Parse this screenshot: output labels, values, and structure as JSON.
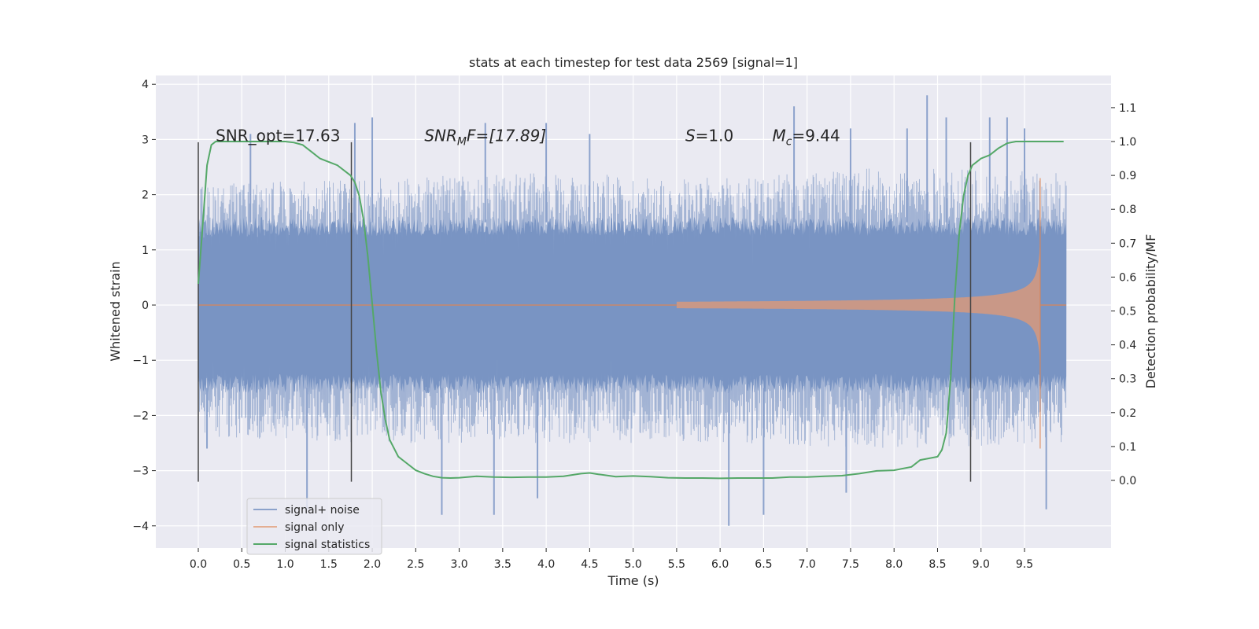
{
  "chart_data": {
    "type": "line",
    "title": "stats at each timestep for test data 2569 [signal=1]",
    "xlabel": "Time (s)",
    "ylabel": "Whitened strain",
    "y2label": "Detection probability/MF",
    "xlim": [
      -0.5,
      10.5
    ],
    "ylim": [
      -4.4,
      4.2
    ],
    "y2lim": [
      -0.2,
      1.2
    ],
    "x_ticks": [
      "0.0",
      "0.5",
      "1.0",
      "1.5",
      "2.0",
      "2.5",
      "3.0",
      "3.5",
      "4.0",
      "4.5",
      "5.0",
      "5.5",
      "6.0",
      "6.5",
      "7.0",
      "7.5",
      "8.0",
      "8.5",
      "9.0",
      "9.5"
    ],
    "x_tick_values": [
      0.0,
      0.5,
      1.0,
      1.5,
      2.0,
      2.5,
      3.0,
      3.5,
      4.0,
      4.5,
      5.0,
      5.5,
      6.0,
      6.5,
      7.0,
      7.5,
      8.0,
      8.5,
      9.0,
      9.5
    ],
    "y_ticks": [
      "4",
      "3",
      "2",
      "1",
      "0",
      "−1",
      "−2",
      "−3",
      "−4"
    ],
    "y_tick_values": [
      4,
      3,
      2,
      1,
      0,
      -1,
      -2,
      -3,
      -4
    ],
    "y2_ticks": [
      "1.1",
      "1.0",
      "0.9",
      "0.8",
      "0.7",
      "0.6",
      "0.5",
      "0.4",
      "0.3",
      "0.2",
      "0.1",
      "0.0"
    ],
    "y2_tick_values": [
      1.1,
      1.0,
      0.9,
      0.8,
      0.7,
      0.6,
      0.5,
      0.4,
      0.3,
      0.2,
      0.1,
      0.0
    ],
    "grid": true,
    "legend_position": "bottom-left",
    "annotations": [
      {
        "name": "snr-opt",
        "text": "SNR_opt=17.63",
        "x": 0.2,
        "y": 3.0
      },
      {
        "name": "snr-mf",
        "text": "SNR",
        "sub": "M",
        "rest": "F=[17.89]",
        "x": 2.6,
        "y": 3.0
      },
      {
        "name": "s-value",
        "text": "S",
        "rest": "=1.0",
        "x": 5.6,
        "y": 3.0
      },
      {
        "name": "mc-value",
        "text": "M",
        "sub": "c",
        "rest": "=9.44",
        "x": 6.6,
        "y": 3.0
      }
    ],
    "vlines": [
      0.0,
      1.76,
      8.88
    ],
    "vline_range": [
      -3.2,
      2.95
    ],
    "series": [
      {
        "name": "signal+ noise",
        "color": "#4c72b0",
        "x_range": [
          0.0,
          9.98
        ],
        "band": [
          [
            0.0,
            2.2,
            -2.4
          ],
          [
            2.0,
            2.3,
            -2.5
          ],
          [
            4.0,
            2.4,
            -2.5
          ],
          [
            6.0,
            2.3,
            -2.5
          ],
          [
            8.0,
            2.5,
            -2.6
          ],
          [
            9.98,
            2.4,
            -2.5
          ]
        ],
        "peaks": [
          [
            0.6,
            3.1
          ],
          [
            1.8,
            3.3
          ],
          [
            2.0,
            3.4
          ],
          [
            3.3,
            3.3
          ],
          [
            4.0,
            3.3
          ],
          [
            4.5,
            3.1
          ],
          [
            6.85,
            3.6
          ],
          [
            7.5,
            3.2
          ],
          [
            8.15,
            3.2
          ],
          [
            8.38,
            3.8
          ],
          [
            8.6,
            3.4
          ],
          [
            9.1,
            3.4
          ],
          [
            9.3,
            3.4
          ],
          [
            9.5,
            3.2
          ]
        ],
        "troughs": [
          [
            0.1,
            -2.6
          ],
          [
            1.25,
            -3.7
          ],
          [
            2.8,
            -3.8
          ],
          [
            3.4,
            -3.8
          ],
          [
            3.9,
            -3.5
          ],
          [
            6.1,
            -4.0
          ],
          [
            6.5,
            -3.8
          ],
          [
            7.45,
            -3.4
          ],
          [
            9.75,
            -3.7
          ]
        ]
      },
      {
        "name": "signal only",
        "color": "#dd8452",
        "chirp_start": 5.5,
        "chirp_end": 9.68,
        "chirp_peak_amplitude": 2.3
      },
      {
        "name": "signal statistics",
        "color": "#55a868",
        "axis": "right",
        "x": [
          0.0,
          0.05,
          0.1,
          0.15,
          0.2,
          0.3,
          0.5,
          0.8,
          1.0,
          1.1,
          1.2,
          1.3,
          1.4,
          1.5,
          1.6,
          1.7,
          1.75,
          1.8,
          1.85,
          1.9,
          1.95,
          2.0,
          2.05,
          2.1,
          2.15,
          2.2,
          2.3,
          2.4,
          2.5,
          2.6,
          2.7,
          2.8,
          2.9,
          3.0,
          3.2,
          3.4,
          3.6,
          3.8,
          4.0,
          4.2,
          4.4,
          4.5,
          4.6,
          4.8,
          5.0,
          5.2,
          5.4,
          5.6,
          5.8,
          6.0,
          6.2,
          6.4,
          6.6,
          6.8,
          7.0,
          7.2,
          7.4,
          7.6,
          7.8,
          8.0,
          8.2,
          8.3,
          8.4,
          8.5,
          8.55,
          8.6,
          8.65,
          8.7,
          8.75,
          8.8,
          8.85,
          8.9,
          8.95,
          9.0,
          9.1,
          9.2,
          9.3,
          9.4,
          9.5,
          9.6,
          9.7,
          9.8,
          9.95
        ],
        "y": [
          0.58,
          0.75,
          0.93,
          0.99,
          1.0,
          1.0,
          1.0,
          1.0,
          1.0,
          0.997,
          0.99,
          0.97,
          0.95,
          0.94,
          0.93,
          0.91,
          0.9,
          0.88,
          0.84,
          0.77,
          0.66,
          0.52,
          0.38,
          0.26,
          0.18,
          0.12,
          0.07,
          0.05,
          0.03,
          0.02,
          0.012,
          0.008,
          0.007,
          0.008,
          0.012,
          0.01,
          0.009,
          0.01,
          0.01,
          0.012,
          0.02,
          0.022,
          0.018,
          0.011,
          0.013,
          0.011,
          0.008,
          0.007,
          0.007,
          0.006,
          0.007,
          0.007,
          0.007,
          0.01,
          0.01,
          0.012,
          0.014,
          0.02,
          0.028,
          0.03,
          0.04,
          0.06,
          0.065,
          0.07,
          0.09,
          0.14,
          0.3,
          0.55,
          0.73,
          0.84,
          0.9,
          0.93,
          0.94,
          0.95,
          0.96,
          0.98,
          0.995,
          1.0,
          1.0,
          1.0,
          1.0,
          1.0,
          1.0
        ]
      }
    ]
  }
}
